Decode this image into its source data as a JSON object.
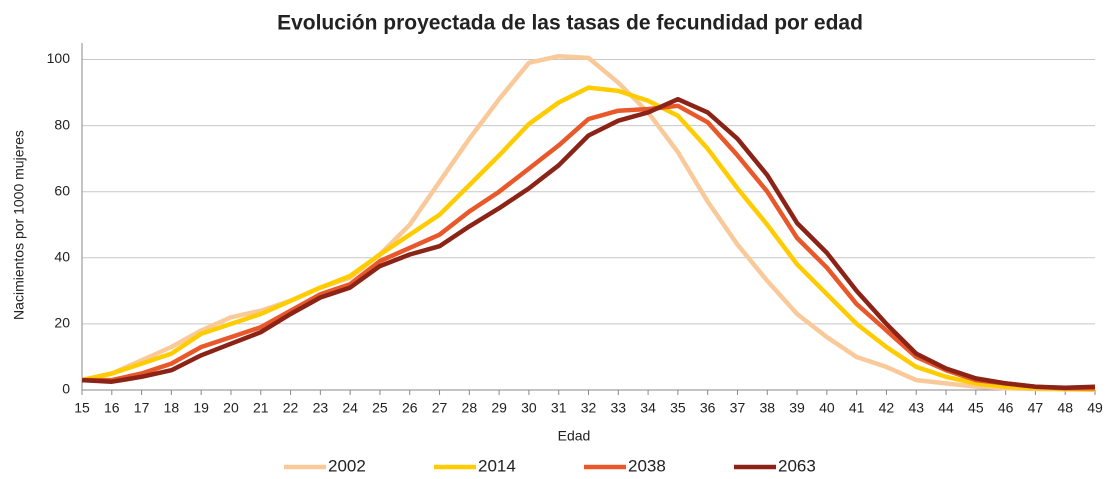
{
  "chart_data": {
    "type": "line",
    "title": "Evolución proyectada de las tasas de fecundidad por edad",
    "x_label": "Edad",
    "y_label": "Nacimientos por 1000 mujeres",
    "categories": [
      "15",
      "16",
      "17",
      "18",
      "19",
      "20",
      "21",
      "22",
      "23",
      "24",
      "25",
      "26",
      "27",
      "28",
      "29",
      "30",
      "31",
      "32",
      "33",
      "34",
      "35",
      "36",
      "37",
      "38",
      "39",
      "40",
      "41",
      "42",
      "43",
      "44",
      "45",
      "46",
      "47",
      "48",
      "49"
    ],
    "ylim": [
      0,
      105
    ],
    "yticks": [
      0,
      20,
      40,
      60,
      80,
      100
    ],
    "grid": true,
    "legend": "bottom",
    "series": [
      {
        "name": "2002",
        "color": "#f9c99a",
        "values": [
          3,
          5,
          9,
          13,
          18,
          22,
          24,
          27,
          31,
          34,
          41,
          50,
          63,
          76,
          88,
          99,
          101,
          100.5,
          93,
          84,
          72,
          57,
          44,
          33,
          23,
          16,
          10,
          7,
          3,
          2,
          1,
          0.5,
          0.3,
          0.2,
          0.1
        ]
      },
      {
        "name": "2014",
        "color": "#ffcc00",
        "values": [
          3,
          5,
          8,
          11,
          17,
          20,
          23,
          27,
          31,
          34.5,
          41,
          47,
          53,
          62,
          71,
          80.5,
          87,
          91.5,
          90.5,
          87.5,
          83,
          73,
          61,
          50,
          38,
          29,
          20,
          13,
          7,
          4,
          2,
          1,
          0.5,
          0.3,
          0.2
        ]
      },
      {
        "name": "2038",
        "color": "#e8582a",
        "values": [
          3,
          3,
          5,
          8,
          13,
          16,
          19,
          24,
          29,
          32,
          39,
          43,
          47,
          54,
          60,
          67,
          74,
          82,
          84.5,
          85,
          86,
          81,
          71,
          60,
          46,
          37,
          26,
          18,
          10,
          6,
          3,
          2,
          1,
          0.5,
          0.5
        ]
      },
      {
        "name": "2063",
        "color": "#8b2316",
        "values": [
          3,
          2.5,
          4,
          6,
          10.5,
          14,
          17.5,
          23,
          28,
          31,
          37.5,
          41,
          43.5,
          49.5,
          55,
          61,
          68,
          77,
          81.5,
          84,
          88,
          84,
          76,
          65,
          50.5,
          41.5,
          30,
          20,
          11,
          6.5,
          3.5,
          2,
          1,
          0.7,
          1
        ]
      }
    ]
  }
}
